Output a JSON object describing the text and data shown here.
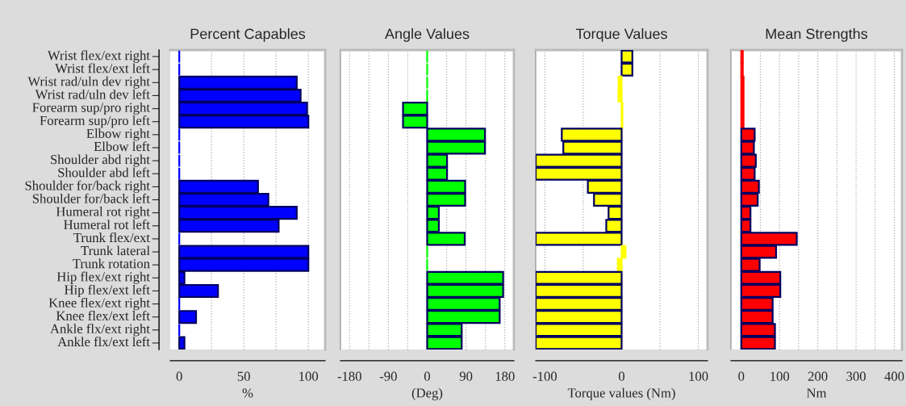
{
  "chart_data": [
    {
      "type": "bar",
      "orientation": "horizontal",
      "title": "Percent Capables",
      "xlabel": "%",
      "grid": "x",
      "categories": [
        "Wrist flex/ext right",
        "Wrist flex/ext left",
        "Wrist rad/uln dev right",
        "Wrist rad/uln dev left",
        "Forearm sup/pro right",
        "Forearm sup/pro left",
        "Elbow right",
        "Elbow left",
        "Shoulder abd right",
        "Shoulder abd left",
        "Shoulder for/back right",
        "Shoulder for/back left",
        "Humeral rot right",
        "Humeral rot left",
        "Trunk flex/ext",
        "Trunk lateral",
        "Trunk rotation",
        "Hip flex/ext right",
        "Hip flex/ext left",
        "Knee flex/ext right",
        "Knee flex/ext left",
        "Ankle flx/ext right",
        "Ankle flx/ext left"
      ],
      "series": [
        {
          "color": "#0000ff",
          "values": [
            0,
            0,
            91,
            94,
            99,
            100,
            0,
            0,
            0,
            0,
            61,
            69,
            91,
            77,
            0,
            100,
            100,
            4,
            30,
            0,
            13,
            0,
            4
          ]
        }
      ],
      "xlim": [
        -7,
        113
      ],
      "xticks": [
        0,
        {
          "value": 25,
          "label": null
        },
        50,
        {
          "value": 75,
          "label": null
        },
        100
      ]
    },
    {
      "type": "bar",
      "orientation": "horizontal",
      "title": "Angle Values",
      "xlabel": "(Deg)",
      "grid": "x",
      "tick_labels": "x",
      "categories": [
        null,
        null,
        null,
        null,
        null,
        null,
        null,
        null,
        null,
        null,
        null,
        null,
        null,
        null,
        null,
        null,
        null,
        null,
        null,
        null,
        null,
        null,
        null
      ],
      "series": [
        {
          "color": "#00ff00",
          "values": [
            0,
            0,
            0,
            0,
            -56,
            -56,
            134,
            134,
            46,
            46,
            88,
            88,
            27,
            27,
            87,
            0,
            0,
            176,
            176,
            168,
            168,
            80,
            80
          ]
        }
      ],
      "xlim": [
        -201,
        201
      ],
      "xticks": [
        -180,
        {
          "value": -135,
          "label": null
        },
        -90,
        {
          "value": -45,
          "label": null
        },
        0,
        {
          "value": 45,
          "label": null
        },
        90,
        {
          "value": 135,
          "label": null
        },
        180
      ]
    },
    {
      "type": "bar",
      "orientation": "horizontal",
      "title": "Torque Values",
      "xlabel": "Torque values (Nm)",
      "grid": "x",
      "tick_labels": "x",
      "categories": [
        null,
        null,
        null,
        null,
        null,
        null,
        null,
        null,
        null,
        null,
        null,
        null,
        null,
        null,
        null,
        null,
        null,
        null,
        null,
        null,
        null,
        null,
        null
      ],
      "series": [
        {
          "color": "#ffff00",
          "values": [
            14,
            14,
            -4,
            -4,
            1,
            1,
            -78,
            -76,
            -112,
            -112,
            -44,
            -36,
            -17,
            -20,
            -112,
            5,
            -5,
            -112,
            -112,
            -112,
            -112,
            -112,
            -112
          ]
        }
      ],
      "xlim": [
        -112,
        112
      ],
      "xticks": [
        -100,
        {
          "value": -50,
          "label": null
        },
        0,
        {
          "value": 50,
          "label": null
        },
        100
      ]
    },
    {
      "type": "bar",
      "orientation": "horizontal",
      "title": "Mean Strengths",
      "xlabel": "Nm",
      "grid": "x",
      "tick_labels": "x",
      "categories": [
        null,
        null,
        null,
        null,
        null,
        null,
        null,
        null,
        null,
        null,
        null,
        null,
        null,
        null,
        null,
        null,
        null,
        null,
        null,
        null,
        null,
        null,
        null
      ],
      "series": [
        {
          "color": "#ff0000",
          "values": [
            4,
            4,
            6,
            6,
            6,
            6,
            35,
            33,
            38,
            35,
            46,
            43,
            24,
            24,
            145,
            91,
            48,
            102,
            102,
            82,
            82,
            88,
            88
          ]
        }
      ],
      "xlim": [
        -27,
        420
      ],
      "xticks": [
        0,
        {
          "value": 50,
          "label": null
        },
        100,
        {
          "value": 150,
          "label": null
        },
        200,
        {
          "value": 250,
          "label": null
        },
        300,
        {
          "value": 350,
          "label": null
        },
        400
      ]
    }
  ]
}
